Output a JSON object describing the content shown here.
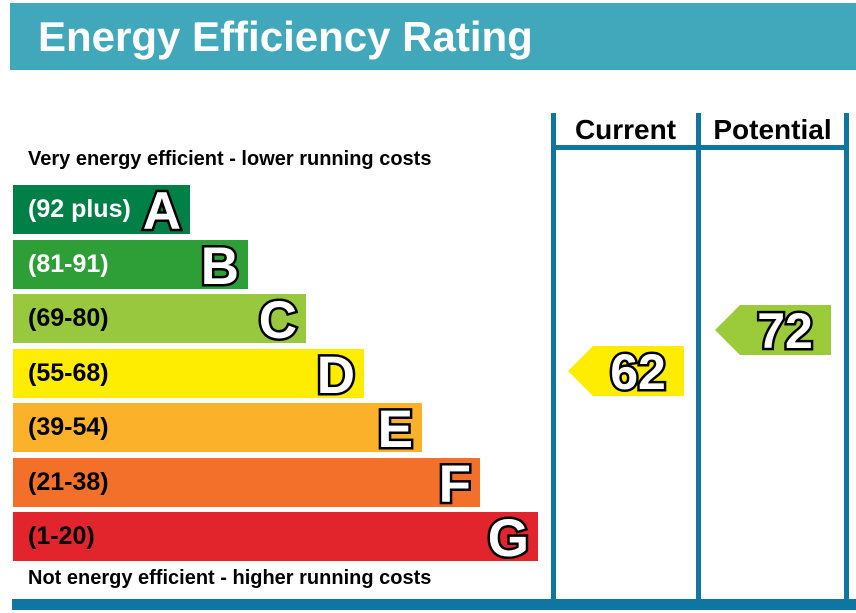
{
  "title_bar": {
    "title": "Energy Efficiency Rating",
    "bg_color": "#41a7ba",
    "text_color": "#ffffff"
  },
  "labels": {
    "top_caption": "Very energy efficient - lower running costs",
    "bottom_caption": "Not energy efficient - higher running costs",
    "current_header": "Current",
    "potential_header": "Potential"
  },
  "frame_color": "#0e76a0",
  "chart_data": {
    "type": "bar",
    "title": "Energy Efficiency Rating",
    "bands": [
      {
        "grade": "A",
        "range_label": "(92 plus)",
        "min": 92,
        "max": 100,
        "color": "#008047",
        "label_color": "#ffffff"
      },
      {
        "grade": "B",
        "range_label": "(81-91)",
        "min": 81,
        "max": 91,
        "color": "#2e9f36",
        "label_color": "#ffffff"
      },
      {
        "grade": "C",
        "range_label": "(69-80)",
        "min": 69,
        "max": 80,
        "color": "#97c83e",
        "label_color": "#000000"
      },
      {
        "grade": "D",
        "range_label": "(55-68)",
        "min": 55,
        "max": 68,
        "color": "#ffed00",
        "label_color": "#000000"
      },
      {
        "grade": "E",
        "range_label": "(39-54)",
        "min": 39,
        "max": 54,
        "color": "#fbb12a",
        "label_color": "#000000"
      },
      {
        "grade": "F",
        "range_label": "(21-38)",
        "min": 21,
        "max": 38,
        "color": "#f3702a",
        "label_color": "#000000"
      },
      {
        "grade": "G",
        "range_label": "(1-20)",
        "min": 1,
        "max": 20,
        "color": "#e2242d",
        "label_color": "#000000"
      }
    ],
    "markers": {
      "current": {
        "value": 62,
        "band": "D",
        "color": "#ffed00"
      },
      "potential": {
        "value": 72,
        "band": "C",
        "color": "#9bcb3a"
      }
    }
  }
}
